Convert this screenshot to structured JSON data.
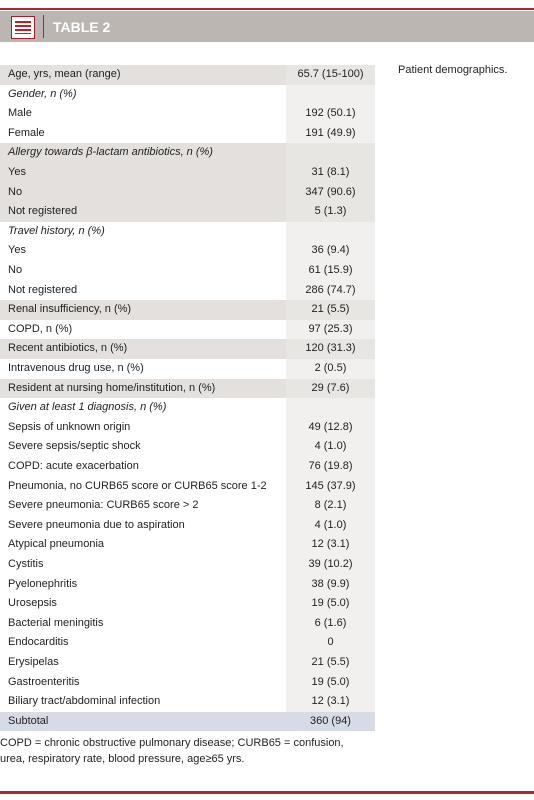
{
  "header": {
    "title": "TABLE 2"
  },
  "caption": "Patient demographics.",
  "table": {
    "rows": [
      [
        "Age, yrs, mean (range)",
        "65.7 (15-100)"
      ],
      [
        "Gender, n (%)"
      ],
      [
        "Male",
        "192 (50.1)"
      ],
      [
        "Female",
        "191 (49.9)"
      ],
      [
        "Allergy towards β-lactam antibiotics, n (%)"
      ],
      [
        "Yes",
        "31 (8.1)"
      ],
      [
        "No",
        "347 (90.6)"
      ],
      [
        "Not registered",
        "5 (1.3)"
      ],
      [
        "Travel history, n (%)"
      ],
      [
        "Yes",
        "36 (9.4)"
      ],
      [
        "No",
        "61 (15.9)"
      ],
      [
        "Not registered",
        "286 (74.7)"
      ],
      [
        "Renal insufficiency, n (%)",
        "21 (5.5)"
      ],
      [
        "COPD, n (%)",
        "97 (25.3)"
      ],
      [
        "Recent antibiotics, n (%)",
        "120 (31.3)"
      ],
      [
        "Intravenous drug use, n (%)",
        "2 (0.5)"
      ],
      [
        "Resident at nursing home/institution, n (%)",
        "29 (7.6)"
      ],
      [
        "Given at least 1 diagnosis, n (%)"
      ],
      [
        "Sepsis of unknown origin",
        "49 (12.8)"
      ],
      [
        "Severe sepsis/septic shock",
        "4 (1.0)"
      ],
      [
        "COPD: acute exacerbation",
        "76 (19.8)"
      ],
      [
        "Pneumonia, no CURB65 score or CURB65 score 1-2",
        "145 (37.9)"
      ],
      [
        "Severe pneumonia: CURB65 score > 2",
        "8 (2.1)"
      ],
      [
        "Severe pneumonia due to aspiration",
        "4 (1.0)"
      ],
      [
        "Atypical pneumonia",
        "12 (3.1)"
      ],
      [
        "Cystitis",
        "39 (10.2)"
      ],
      [
        "Pyelonephritis",
        "38 (9.9)"
      ],
      [
        "Urosepsis",
        "19 (5.0)"
      ],
      [
        "Bacterial meningitis",
        "6 (1.6)"
      ],
      [
        "Endocarditis",
        "0"
      ],
      [
        "Erysipelas",
        "21 (5.5)"
      ],
      [
        "Gastroenteritis",
        "19 (5.0)"
      ],
      [
        "Biliary tract/abdominal infection",
        "12 (3.1)"
      ],
      [
        "Subtotal",
        "360 (94)"
      ]
    ]
  },
  "footnote": [
    "COPD = chronic obstructive pulmonary disease; CURB65 = confusion,",
    "urea, respiratory rate, blood pressure, age≥65 yrs."
  ]
}
